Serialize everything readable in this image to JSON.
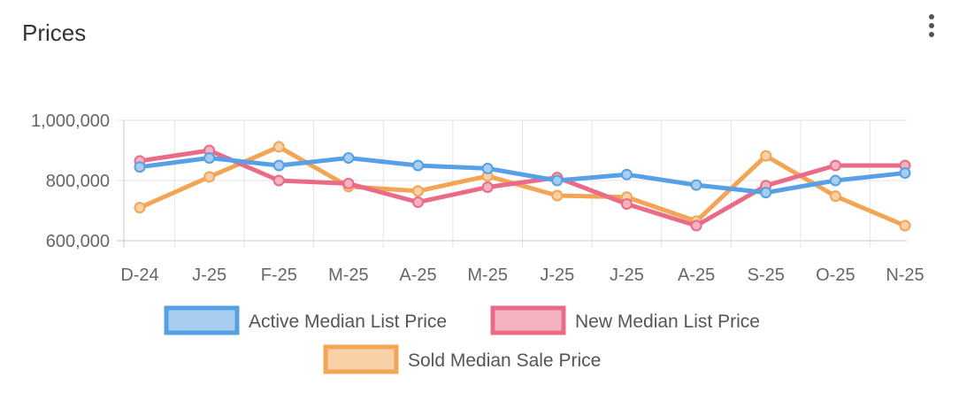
{
  "header": {
    "title": "Prices"
  },
  "chart_data": {
    "type": "line",
    "title": "Prices",
    "categories": [
      "D-24",
      "J-25",
      "F-25",
      "M-25",
      "A-25",
      "M-25",
      "J-25",
      "J-25",
      "A-25",
      "S-25",
      "O-25",
      "N-25"
    ],
    "ylim": [
      600000,
      1000000
    ],
    "yticks": [
      600000,
      800000,
      1000000
    ],
    "ytick_labels": [
      "600,000",
      "800,000",
      "1,000,000"
    ],
    "grid": true,
    "legend_position": "bottom",
    "series": [
      {
        "name": "Active Median List Price",
        "color": "#57a0e5",
        "fill": "#a8cdf1",
        "values": [
          845000,
          875000,
          850000,
          875000,
          850000,
          840000,
          800000,
          820000,
          785000,
          760000,
          800000,
          825000
        ]
      },
      {
        "name": "New Median List Price",
        "color": "#ea6b88",
        "fill": "#f5b3c2",
        "values": [
          865000,
          900000,
          800000,
          790000,
          728000,
          778000,
          810000,
          722000,
          650000,
          783000,
          850000,
          850000
        ]
      },
      {
        "name": "Sold Median Sale Price",
        "color": "#f2a554",
        "fill": "#f9d1a9",
        "values": [
          710000,
          812000,
          912000,
          780000,
          765000,
          815000,
          750000,
          745000,
          665000,
          882000,
          748000,
          650000
        ]
      }
    ]
  }
}
